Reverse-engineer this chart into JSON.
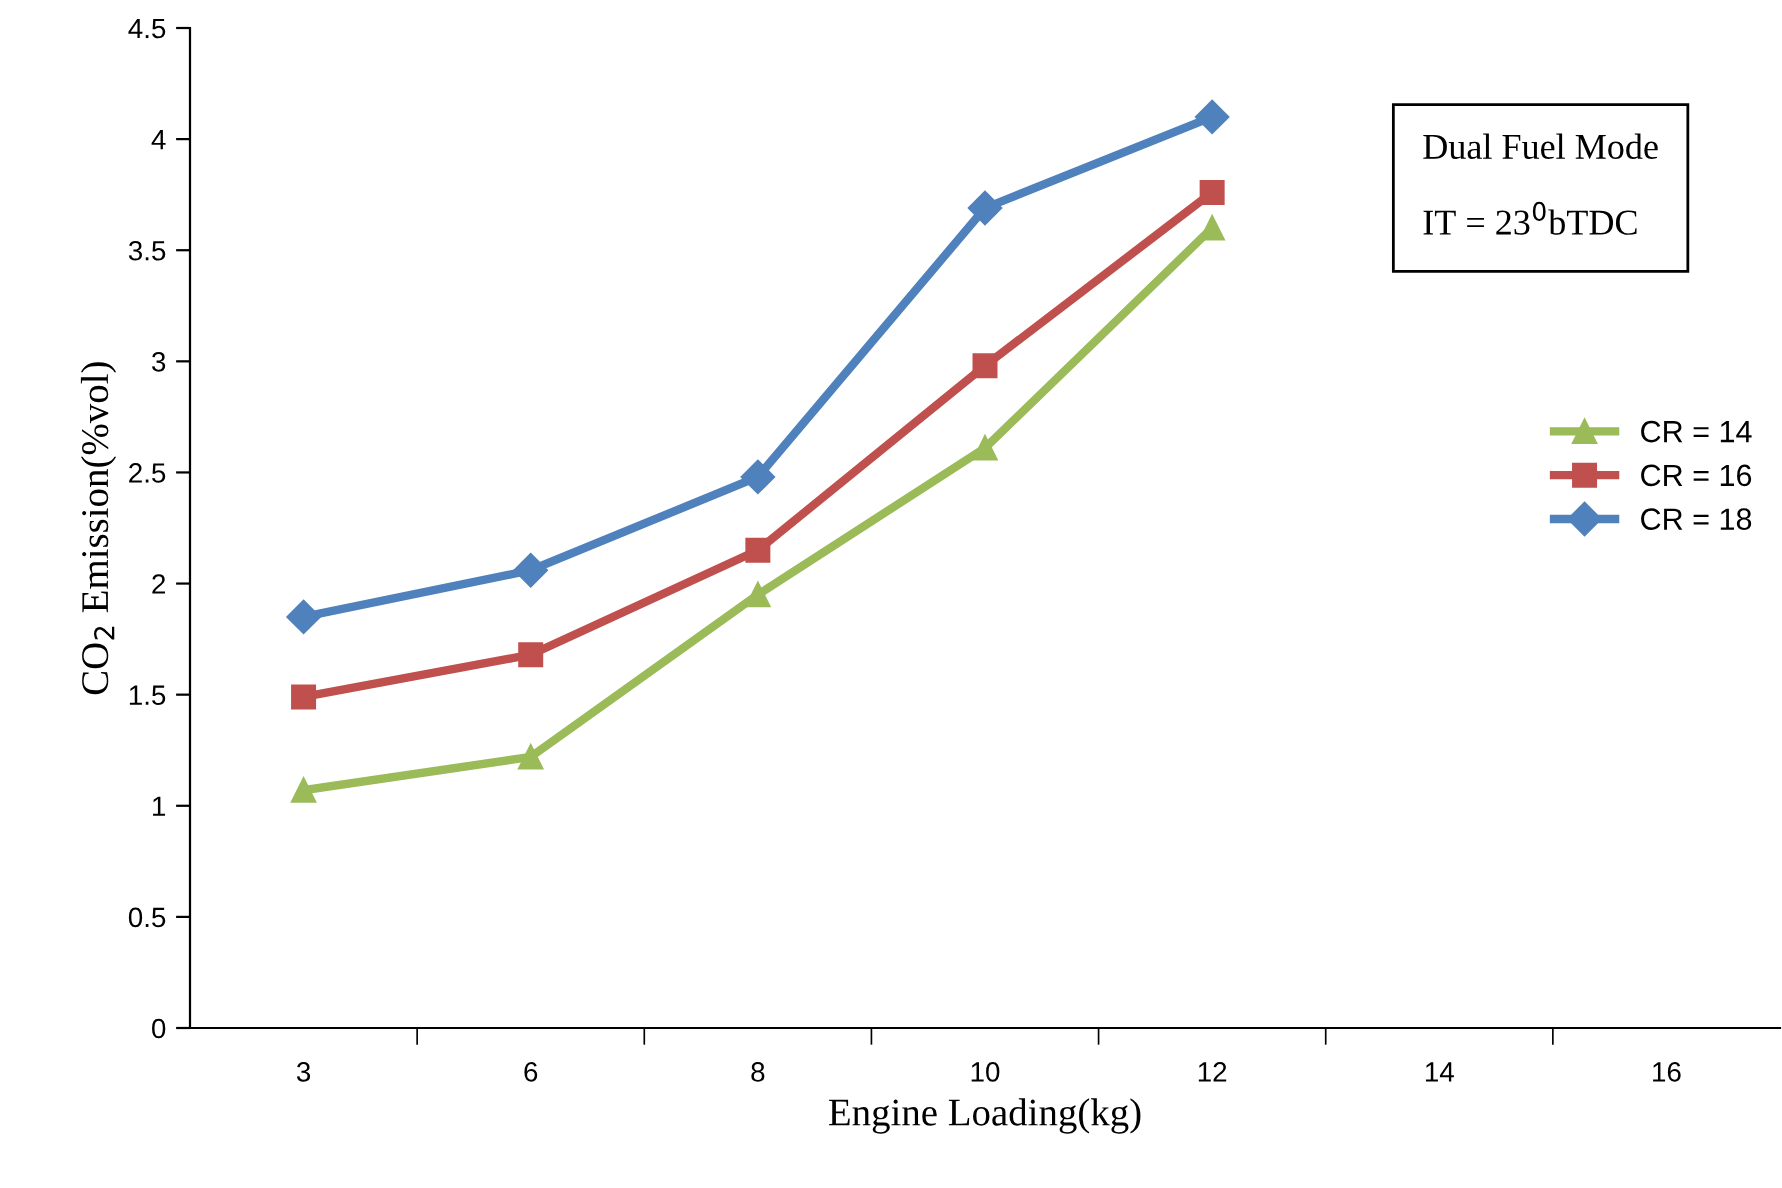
{
  "chart_data": {
    "type": "line",
    "xlabel": "Engine Loading(kg)",
    "ylabel": "CO$_{2}$ Emission(%vol)",
    "categories": [
      "3",
      "6",
      "8",
      "10",
      "12",
      "14",
      "16"
    ],
    "series": [
      {
        "name": "CR = 14",
        "color": "#9bbb59",
        "marker": "triangle",
        "values": [
          1.07,
          1.22,
          1.95,
          2.61,
          3.6,
          null,
          null
        ]
      },
      {
        "name": "CR = 16",
        "color": "#c0504d",
        "marker": "square",
        "values": [
          1.49,
          1.68,
          2.15,
          2.98,
          3.76,
          null,
          null
        ]
      },
      {
        "name": "CR = 18",
        "color": "#4f81bd",
        "marker": "diamond",
        "values": [
          1.85,
          2.06,
          2.48,
          3.69,
          4.1,
          null,
          null
        ]
      }
    ],
    "annotations": [
      "Dual Fuel Mode",
      "IT = 23$^{0}$bTDC"
    ],
    "ylim": [
      0,
      4.5
    ],
    "yticks": [
      0,
      0.5,
      1,
      1.5,
      2,
      2.5,
      3,
      3.5,
      4,
      4.5
    ],
    "grid": false,
    "legend": "right",
    "line_style": "solid"
  }
}
